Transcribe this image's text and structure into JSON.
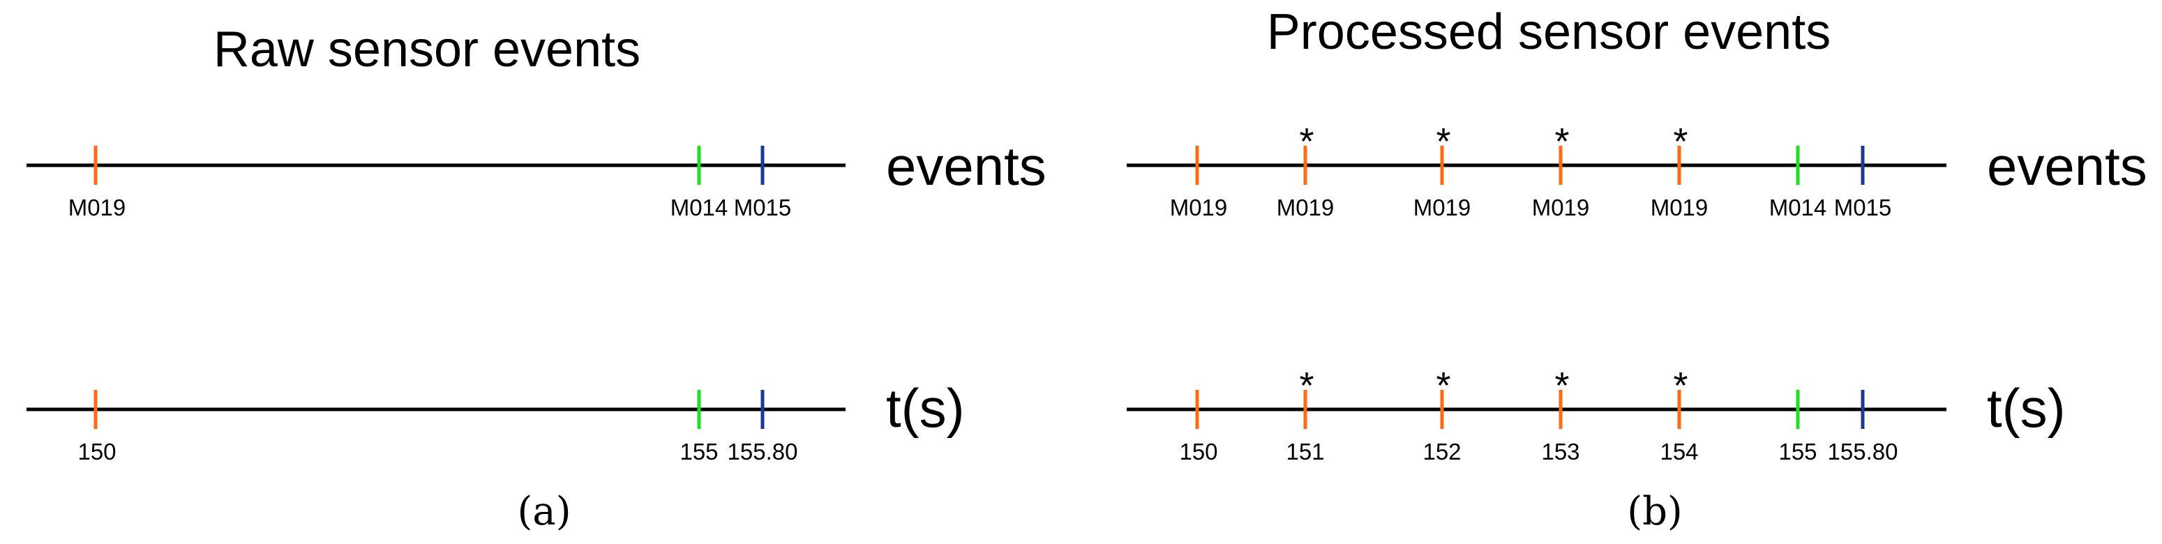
{
  "colors": {
    "M019": "#ff6a13",
    "M014": "#22dd22",
    "M015": "#1a3a9a"
  },
  "panels": [
    {
      "id": "a",
      "title": "Raw sensor events",
      "caption": "(a)",
      "rows": [
        {
          "label": "events",
          "ticks": [
            {
              "text": "M019",
              "color": "M019",
              "star": false
            },
            {
              "text": "M014",
              "color": "M014",
              "star": false
            },
            {
              "text": "M015",
              "color": "M015",
              "star": false
            }
          ]
        },
        {
          "label": "t(s)",
          "ticks": [
            {
              "text": "150",
              "color": "M019",
              "star": false
            },
            {
              "text": "155",
              "color": "M014",
              "star": false
            },
            {
              "text": "155.80",
              "color": "M015",
              "star": false
            }
          ]
        }
      ]
    },
    {
      "id": "b",
      "title": "Processed sensor events",
      "caption": "(b)",
      "star_symbol": "*",
      "rows": [
        {
          "label": "events",
          "ticks": [
            {
              "text": "M019",
              "color": "M019",
              "star": false
            },
            {
              "text": "M019",
              "color": "M019",
              "star": true
            },
            {
              "text": "M019",
              "color": "M019",
              "star": true
            },
            {
              "text": "M019",
              "color": "M019",
              "star": true
            },
            {
              "text": "M019",
              "color": "M019",
              "star": true
            },
            {
              "text": "M014",
              "color": "M014",
              "star": false
            },
            {
              "text": "M015",
              "color": "M015",
              "star": false
            }
          ]
        },
        {
          "label": "t(s)",
          "ticks": [
            {
              "text": "150",
              "color": "M019",
              "star": false
            },
            {
              "text": "151",
              "color": "M019",
              "star": true
            },
            {
              "text": "152",
              "color": "M019",
              "star": true
            },
            {
              "text": "153",
              "color": "M019",
              "star": true
            },
            {
              "text": "154",
              "color": "M019",
              "star": true
            },
            {
              "text": "155",
              "color": "M014",
              "star": false
            },
            {
              "text": "155.80",
              "color": "M015",
              "star": false
            }
          ]
        }
      ]
    }
  ]
}
